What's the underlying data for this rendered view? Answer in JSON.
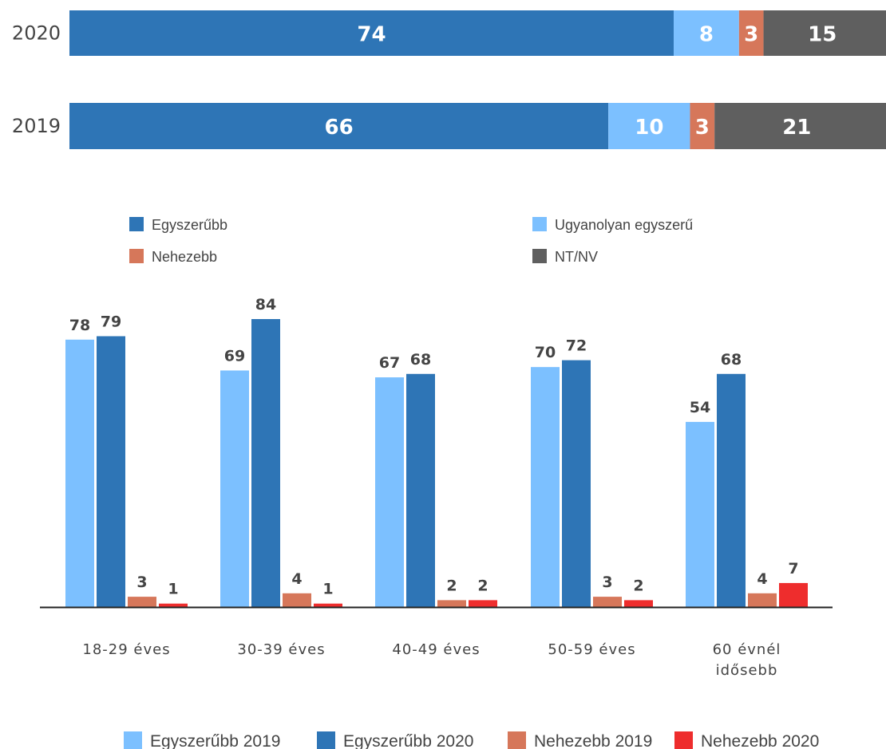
{
  "colors": {
    "egyszerubb": "#2e75b6",
    "ugyanolyan": "#7cc0ff",
    "nehezebb": "#d6775a",
    "ntnv": "#5f5f5f",
    "nehezebb2020": "#ee2d2d"
  },
  "chart_data": [
    {
      "type": "bar",
      "orientation": "horizontal-stacked",
      "categories": [
        "2020",
        "2019"
      ],
      "series": [
        {
          "name": "Egyszerűbb",
          "color": "#2e75b6",
          "values": [
            74,
            66
          ]
        },
        {
          "name": "Ugyanolyan egyszerű",
          "color": "#7cc0ff",
          "values": [
            8,
            10
          ]
        },
        {
          "name": "Nehezebb",
          "color": "#d6775a",
          "values": [
            3,
            3
          ]
        },
        {
          "name": "NT/NV",
          "color": "#5f5f5f",
          "values": [
            15,
            21
          ]
        }
      ],
      "xlim": [
        0,
        100
      ],
      "legend": [
        "Egyszerűbb",
        "Ugyanolyan egyszerű",
        "Nehezebb",
        "NT/NV"
      ],
      "legend_placement": "bottom"
    },
    {
      "type": "bar",
      "orientation": "vertical-grouped",
      "categories": [
        "18-29 éves",
        "30-39 éves",
        "40-49 éves",
        "50-59 éves",
        "60 évnél idősebb"
      ],
      "series": [
        {
          "name": "Egyszerűbb 2019",
          "color": "#7cc0ff",
          "values": [
            78,
            69,
            67,
            70,
            54
          ]
        },
        {
          "name": "Egyszerűbb 2020",
          "color": "#2e75b6",
          "values": [
            79,
            84,
            68,
            72,
            68
          ]
        },
        {
          "name": "Nehezebb 2019",
          "color": "#d6775a",
          "values": [
            3,
            4,
            2,
            3,
            4
          ]
        },
        {
          "name": "Nehezebb 2020",
          "color": "#ee2d2d",
          "values": [
            1,
            1,
            2,
            2,
            7
          ]
        }
      ],
      "ylim": [
        0,
        100
      ],
      "legend_placement": "bottom"
    }
  ]
}
